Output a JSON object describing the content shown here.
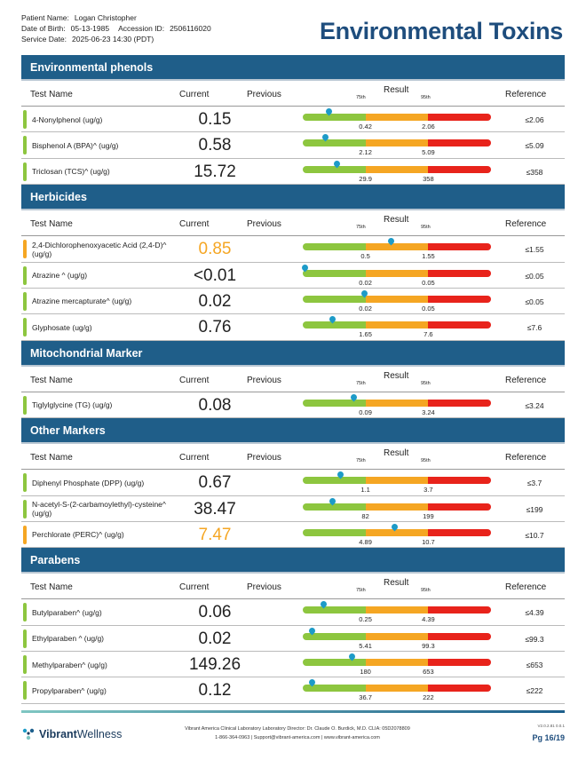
{
  "patient": {
    "name_label": "Patient Name:",
    "name": "Logan Christopher",
    "dob_label": "Date of Birth:",
    "dob": "05-13-1985",
    "accession_label": "Accession ID:",
    "accession": "2506116020",
    "service_label": "Service Date:",
    "service": "2025-06-23 14:30 (PDT)"
  },
  "title": "Environmental Toxins",
  "columns": {
    "test": "Test Name",
    "current": "Current",
    "previous": "Previous",
    "result": "Result",
    "p75": "75th",
    "p95": "95th",
    "reference": "Reference"
  },
  "sections": [
    {
      "title": "Environmental phenols",
      "rows": [
        {
          "name": "4-Nonylphenol (ug/g)",
          "current": "0.15",
          "flag": false,
          "t75": "0.42",
          "t95": "2.06",
          "ref": "≤2.06",
          "level": 0.14
        },
        {
          "name": "Bisphenol A (BPA)^ (ug/g)",
          "current": "0.58",
          "flag": false,
          "t75": "2.12",
          "t95": "5.09",
          "ref": "≤5.09",
          "level": 0.12
        },
        {
          "name": "Triclosan (TCS)^ (ug/g)",
          "current": "15.72",
          "flag": false,
          "t75": "29.9",
          "t95": "358",
          "ref": "≤358",
          "level": 0.18
        }
      ]
    },
    {
      "title": "Herbicides",
      "rows": [
        {
          "name": "2,4-Dichlorophenoxyacetic Acid (2,4-D)^ (ug/g)",
          "current": "0.85",
          "flag": true,
          "t75": "0.5",
          "t95": "1.55",
          "ref": "≤1.55",
          "level": 0.47
        },
        {
          "name": "Atrazine ^ (ug/g)",
          "current": "<0.01",
          "flag": false,
          "t75": "0.02",
          "t95": "0.05",
          "ref": "≤0.05",
          "level": 0.01
        },
        {
          "name": "Atrazine mercapturate^ (ug/g)",
          "current": "0.02",
          "flag": false,
          "t75": "0.02",
          "t95": "0.05",
          "ref": "≤0.05",
          "level": 0.33
        },
        {
          "name": "Glyphosate (ug/g)",
          "current": "0.76",
          "flag": false,
          "t75": "1.65",
          "t95": "7.6",
          "ref": "≤7.6",
          "level": 0.16
        }
      ]
    },
    {
      "title": "Mitochondrial Marker",
      "rows": [
        {
          "name": "Tiglylglycine (TG) (ug/g)",
          "current": "0.08",
          "flag": false,
          "t75": "0.09",
          "t95": "3.24",
          "ref": "≤3.24",
          "level": 0.27
        }
      ]
    },
    {
      "title": "Other Markers",
      "rows": [
        {
          "name": "Diphenyl Phosphate (DPP) (ug/g)",
          "current": "0.67",
          "flag": false,
          "t75": "1.1",
          "t95": "3.7",
          "ref": "≤3.7",
          "level": 0.2
        },
        {
          "name": "N-acetyl-S-(2-carbamoylethyl)-cysteine^ (ug/g)",
          "current": "38.47",
          "flag": false,
          "t75": "82",
          "t95": "199",
          "ref": "≤199",
          "level": 0.16
        },
        {
          "name": "Perchlorate (PERC)^ (ug/g)",
          "current": "7.47",
          "flag": true,
          "t75": "4.89",
          "t95": "10.7",
          "ref": "≤10.7",
          "level": 0.49
        }
      ]
    },
    {
      "title": "Parabens",
      "rows": [
        {
          "name": "Butylparaben^ (ug/g)",
          "current": "0.06",
          "flag": false,
          "t75": "0.25",
          "t95": "4.39",
          "ref": "≤4.39",
          "level": 0.11
        },
        {
          "name": "Ethylparaben ^ (ug/g)",
          "current": "0.02",
          "flag": false,
          "t75": "5.41",
          "t95": "99.3",
          "ref": "≤99.3",
          "level": 0.05
        },
        {
          "name": "Methylparaben^ (ug/g)",
          "current": "149.26",
          "flag": false,
          "t75": "180",
          "t95": "653",
          "ref": "≤653",
          "level": 0.26
        },
        {
          "name": "Propylparaben^ (ug/g)",
          "current": "0.12",
          "flag": false,
          "t75": "36.7",
          "t95": "222",
          "ref": "≤222",
          "level": 0.05
        }
      ]
    }
  ],
  "footer": {
    "brand_a": "Vibrant",
    "brand_b": "Wellness",
    "line1": "Vibrant America Clinical Laboratory Laboratory Director: Dr. Claude O. Burdick, M.D. CLIA: 05D2078809",
    "line2": "1-866-364-0963 | Support@vibrant-america.com | www.vibrant-america.com",
    "version": "V2.0.2.81 0.0.1",
    "page": "Pg 16/19"
  },
  "colors": {
    "header_blue": "#1f5e89",
    "title_blue": "#1e4d7d",
    "normal": "#8dc63f",
    "warning": "#f5a623",
    "high": "#e8231b",
    "marker": "#1d9bc8"
  }
}
